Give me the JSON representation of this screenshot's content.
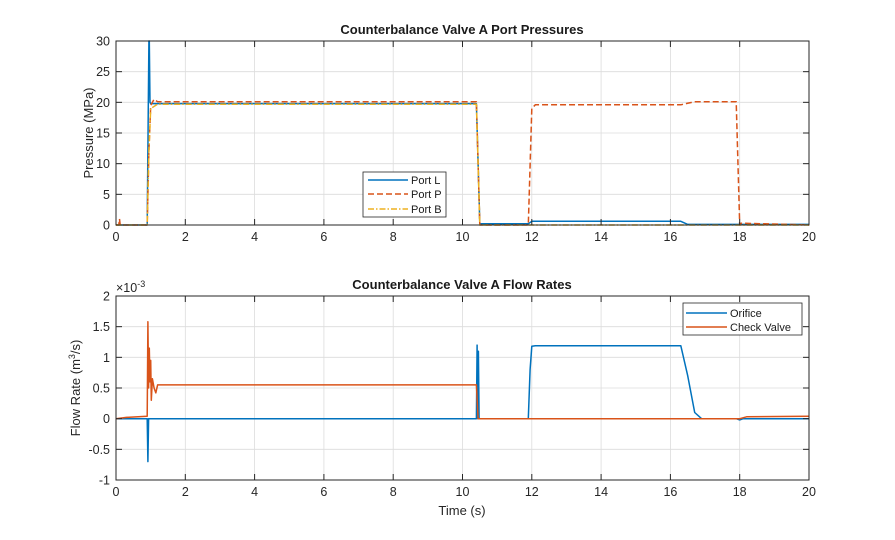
{
  "chart_data": [
    {
      "type": "line",
      "title": "Counterbalance Valve A Port Pressures",
      "xlabel": "",
      "ylabel": "Pressure (MPa)",
      "xlim": [
        0,
        20
      ],
      "ylim": [
        0,
        30
      ],
      "xticks": [
        "0",
        "2",
        "4",
        "6",
        "8",
        "10",
        "12",
        "14",
        "16",
        "18",
        "20"
      ],
      "yticks": [
        "0",
        "5",
        "10",
        "15",
        "20",
        "25",
        "30"
      ],
      "grid": true,
      "legend_position": "bottom-center",
      "series": [
        {
          "name": "Port L",
          "color": "#0072BD",
          "style": "solid",
          "x": [
            0,
            0.9,
            0.95,
            0.96,
            0.98,
            1.0,
            1.2,
            10.4,
            10.45,
            10.5,
            11.9,
            12.0,
            16.3,
            16.5,
            20
          ],
          "y": [
            0,
            0,
            30,
            30,
            20,
            19.8,
            19.8,
            19.8,
            10,
            0.2,
            0.2,
            0.6,
            0.6,
            0.1,
            0.1
          ]
        },
        {
          "name": "Port P",
          "color": "#D95319",
          "style": "dashed",
          "x": [
            0,
            0.08,
            0.1,
            0.12,
            0.9,
            0.95,
            1.0,
            1.1,
            1.2,
            10.4,
            10.45,
            10.5,
            11.9,
            12.0,
            12.1,
            16.3,
            16.7,
            17.9,
            18.0,
            18.05,
            20
          ],
          "y": [
            0,
            0,
            1,
            0,
            0,
            12,
            19.5,
            20.5,
            20.1,
            20.1,
            10,
            0,
            0,
            19,
            19.6,
            19.6,
            20.1,
            20.1,
            0,
            0.3,
            0
          ]
        },
        {
          "name": "Port B",
          "color": "#EDB120",
          "style": "dashdot",
          "x": [
            0,
            0.9,
            0.95,
            1.0,
            1.2,
            10.4,
            10.45,
            10.5,
            20
          ],
          "y": [
            0,
            0,
            12,
            19,
            19.7,
            19.7,
            10,
            0,
            0
          ]
        }
      ]
    },
    {
      "type": "line",
      "title": "Counterbalance Valve A Flow Rates",
      "xlabel": "Time (s)",
      "ylabel": "Flow  Rate  (m",
      "ylabel_sup": "3",
      "ylabel_tail": "/s)",
      "exponent_label": "×10",
      "exponent_sup": "-3",
      "xlim": [
        0,
        20
      ],
      "ylim": [
        -1,
        2
      ],
      "xticks": [
        "0",
        "2",
        "4",
        "6",
        "8",
        "10",
        "12",
        "14",
        "16",
        "18",
        "20"
      ],
      "yticks": [
        "-1",
        "-0.5",
        "0",
        "0.5",
        "1",
        "1.5",
        "2"
      ],
      "grid": true,
      "legend_position": "top-right",
      "series": [
        {
          "name": "Orifice",
          "color": "#0072BD",
          "style": "solid",
          "x": [
            0,
            0.9,
            0.92,
            0.94,
            0.96,
            10.4,
            10.42,
            10.44,
            10.46,
            10.48,
            11.9,
            11.95,
            12.0,
            12.1,
            16.3,
            16.5,
            16.7,
            16.9,
            17.9,
            18.0,
            18.1,
            20
          ],
          "y": [
            0,
            0,
            -0.7,
            0,
            0,
            0,
            1.2,
            0,
            1.1,
            0,
            0,
            0.8,
            1.18,
            1.19,
            1.19,
            0.7,
            0.1,
            0,
            0,
            -0.02,
            0,
            0
          ]
        },
        {
          "name": "Check Valve",
          "color": "#D95319",
          "style": "solid",
          "x": [
            0,
            0.3,
            0.9,
            0.92,
            0.94,
            0.96,
            0.98,
            1.0,
            1.02,
            1.05,
            1.1,
            1.15,
            1.2,
            10.4,
            10.45,
            10.5,
            18.0,
            18.2,
            20
          ],
          "y": [
            0,
            0.02,
            0.04,
            1.58,
            0.5,
            1.15,
            0.6,
            0.95,
            0.3,
            0.65,
            0.5,
            0.42,
            0.55,
            0.55,
            0,
            0,
            0,
            0.03,
            0.04
          ]
        }
      ]
    }
  ]
}
